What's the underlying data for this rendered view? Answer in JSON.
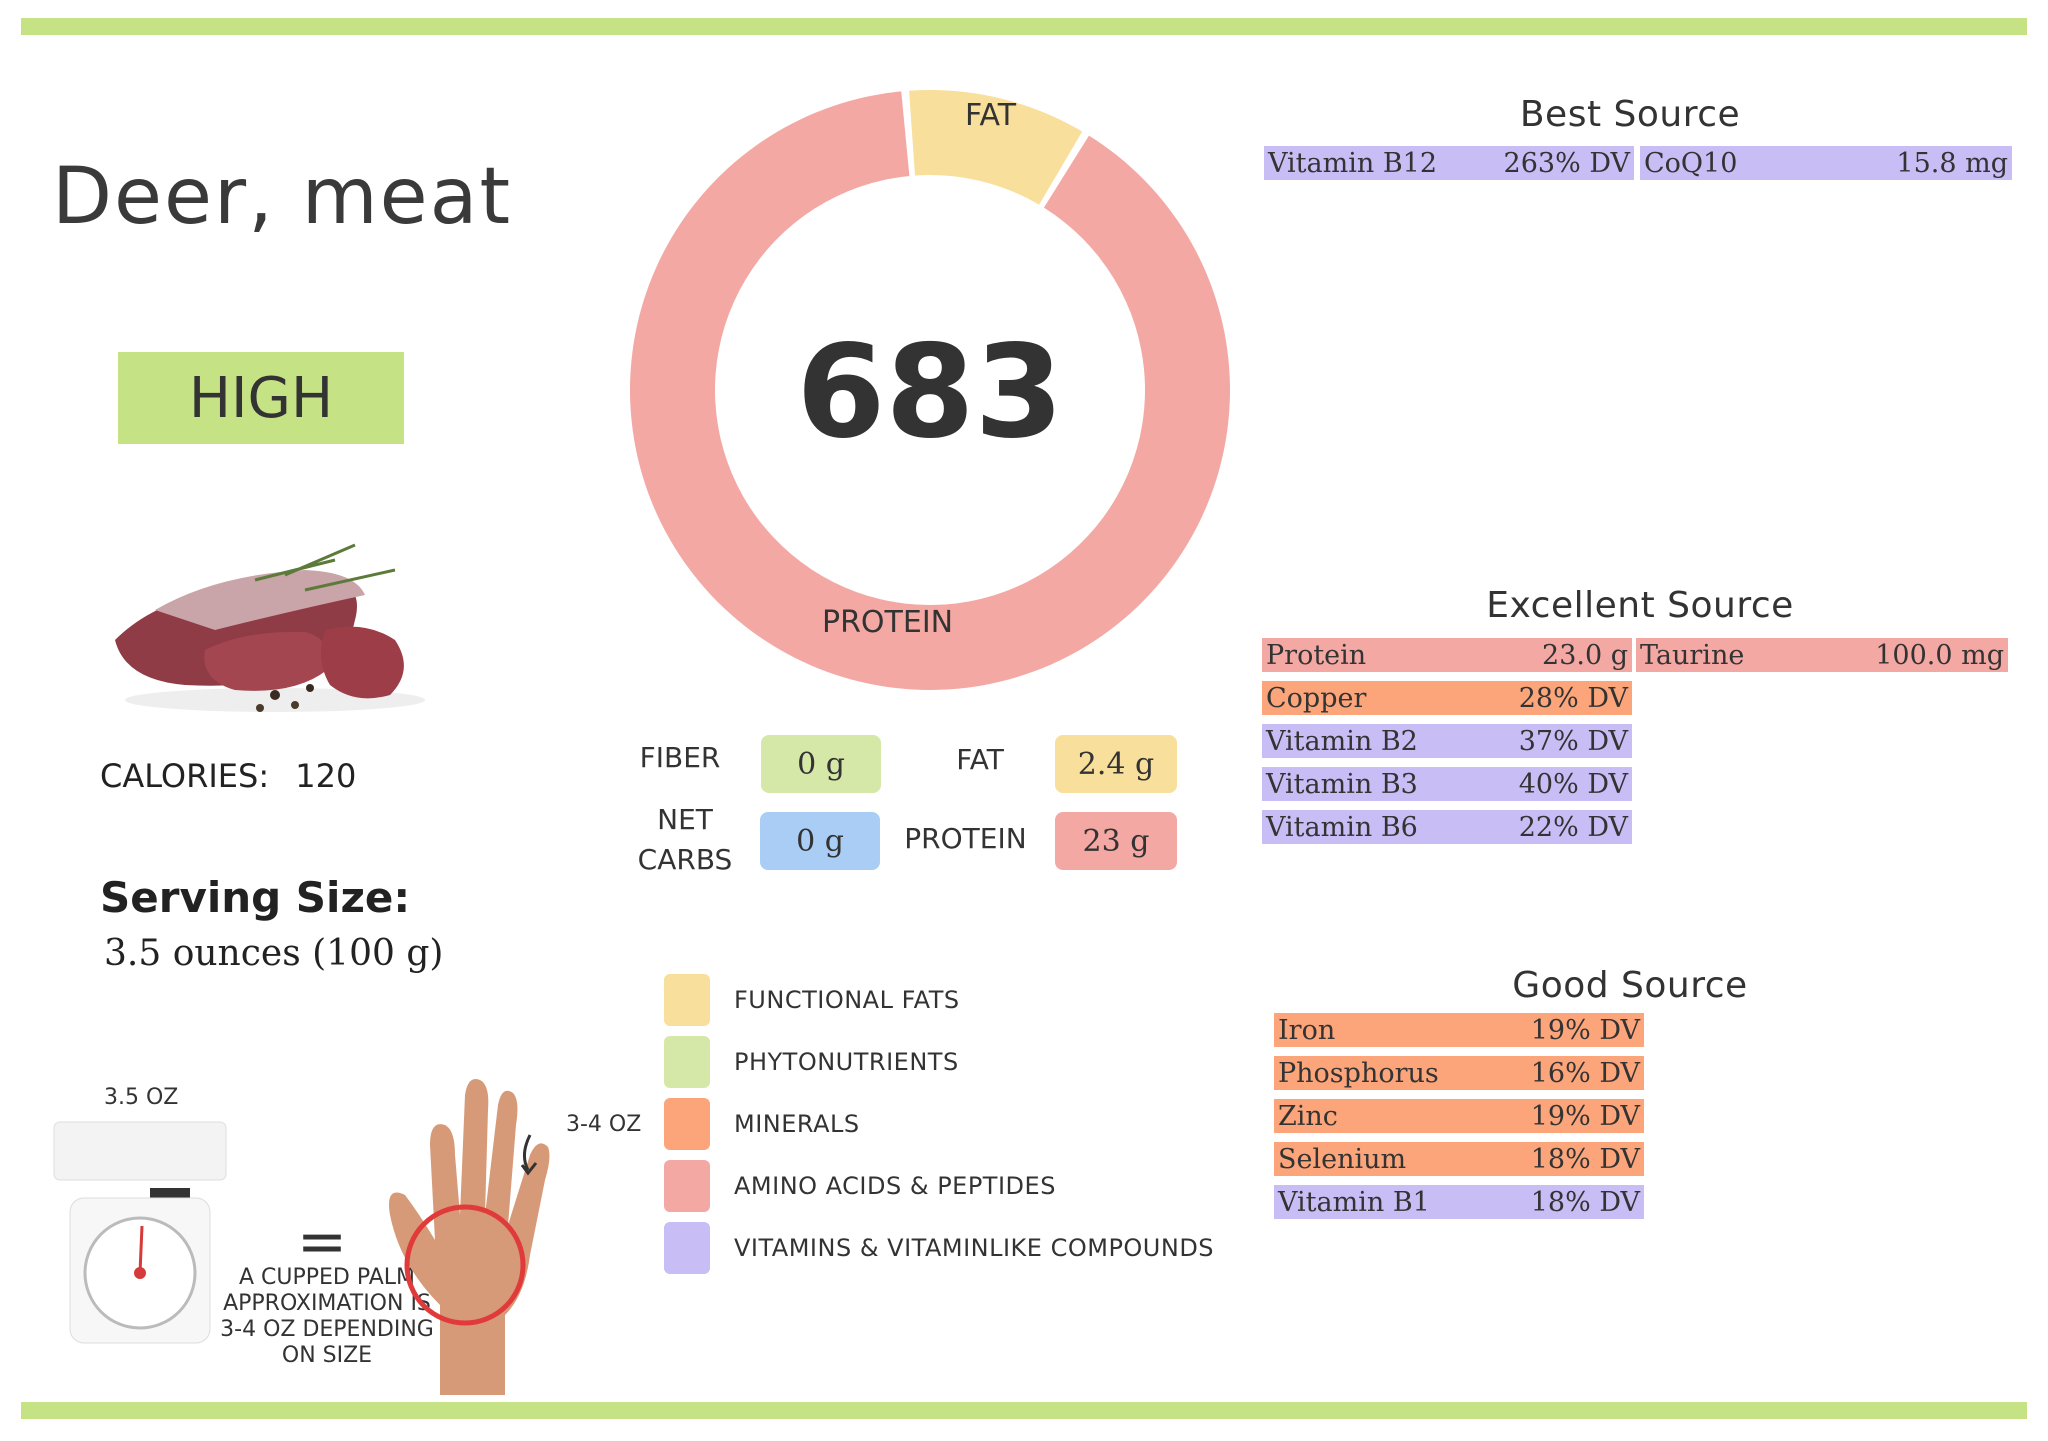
{
  "food": {
    "name": "Deer, meat",
    "badge": "HIGH"
  },
  "calories": {
    "label": "CALORIES:",
    "value": "120"
  },
  "serving": {
    "label": "Serving Size:",
    "value": "3.5 ounces (100 g)"
  },
  "donut": {
    "center_value": "683",
    "labels": {
      "fat": "FAT",
      "protein": "PROTEIN"
    },
    "segments": [
      {
        "name": "fat",
        "fraction": 0.1,
        "color": "#f9df9c"
      },
      {
        "name": "protein",
        "fraction": 0.9,
        "color": "#f4a8a4"
      }
    ]
  },
  "macros": {
    "fiber": {
      "label": "FIBER",
      "value": "0 g",
      "color": "#d5e8a8"
    },
    "fat": {
      "label": "FAT",
      "value": "2.4 g",
      "color": "#f9df9c"
    },
    "net_carbs": {
      "label_line1": "NET",
      "label_line2": "CARBS",
      "value": "0 g",
      "color": "#a9cdf5"
    },
    "protein": {
      "label": "PROTEIN",
      "value": "23 g",
      "color": "#f4a8a4"
    }
  },
  "legend": [
    {
      "label": "FUNCTIONAL  FATS",
      "color": "#f9df9c"
    },
    {
      "label": "PHYTONUTRIENTS",
      "color": "#d5e8a8"
    },
    {
      "label": "MINERALS",
      "color": "#fca57a"
    },
    {
      "label": "AMINO ACIDS & PEPTIDES",
      "color": "#f4a8a4"
    },
    {
      "label": "VITAMINS & VITAMINLIKE COMPOUNDS",
      "color": "#c8bdf5"
    }
  ],
  "best_source": {
    "title": "Best Source",
    "items": [
      {
        "name": "Vitamin B12",
        "value": "263% DV"
      },
      {
        "name": "CoQ10",
        "value": "15.8 mg"
      }
    ]
  },
  "excellent_source": {
    "title": "Excellent Source",
    "items": [
      {
        "name": "Protein",
        "value": "23.0 g"
      },
      {
        "name": "Taurine",
        "value": "100.0 mg"
      },
      {
        "name": "Copper",
        "value": "28% DV"
      },
      {
        "name": "Vitamin B2",
        "value": "37% DV"
      },
      {
        "name": "Vitamin B3",
        "value": "40% DV"
      },
      {
        "name": "Vitamin B6",
        "value": "22% DV"
      }
    ]
  },
  "good_source": {
    "title": "Good Source",
    "items": [
      {
        "name": "Iron",
        "value": "19% DV"
      },
      {
        "name": "Phosphorus",
        "value": "16% DV"
      },
      {
        "name": "Zinc",
        "value": "19% DV"
      },
      {
        "name": "Selenium",
        "value": "18% DV"
      },
      {
        "name": "Vitamin B1",
        "value": "18% DV"
      }
    ]
  },
  "scale": {
    "label": "3.5 OZ",
    "equals": "="
  },
  "palm": {
    "label": "3-4 OZ",
    "caption": [
      "A CUPPED PALM",
      "APPROXIMATION IS",
      "3-4 OZ DEPENDING",
      "ON SIZE"
    ]
  },
  "colors": {
    "accent_green": "#c5e384",
    "purple": "#c8bdf5",
    "pink": "#f4a8a4",
    "orange": "#fca57a"
  }
}
